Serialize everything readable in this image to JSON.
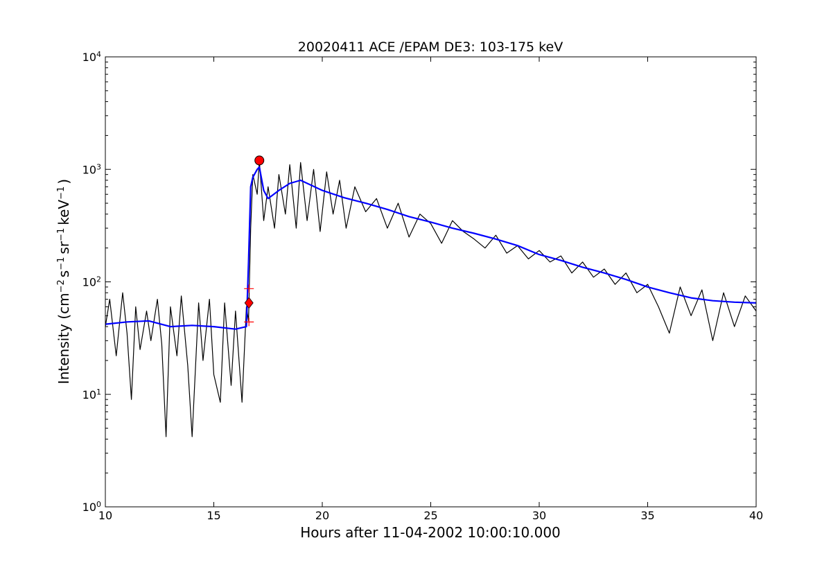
{
  "chart_data": {
    "type": "line",
    "title": "20020411 ACE /EPAM DE3: 103-175 keV",
    "xlabel": "Hours after 11-04-2002 10:00:10.000",
    "ylabel": {
      "base": "Intensity (cm",
      "exp1": "−2",
      "s": "s",
      "exp2": "−1",
      "sr": "sr",
      "exp3": "−1",
      "kev": "keV",
      "exp4": "−1",
      "close": ")"
    },
    "xlim": [
      10,
      40
    ],
    "ylim": [
      1,
      10000
    ],
    "yscale": "log",
    "grid": false,
    "x_ticks": [
      "10",
      "15",
      "20",
      "25",
      "30",
      "35",
      "40"
    ],
    "y_ticks": [
      {
        "base": "10",
        "exp": "0"
      },
      {
        "base": "10",
        "exp": "1"
      },
      {
        "base": "10",
        "exp": "2"
      },
      {
        "base": "10",
        "exp": "3"
      },
      {
        "base": "10",
        "exp": "4"
      }
    ],
    "colors": {
      "raw": "#000000",
      "smoothed": "#0000ff",
      "markers": "#ff0000"
    },
    "series": [
      {
        "style": "raw",
        "x": [
          10.0,
          10.2,
          10.5,
          10.8,
          11.0,
          11.2,
          11.4,
          11.6,
          11.9,
          12.1,
          12.4,
          12.6,
          12.8,
          13.0,
          13.3,
          13.5,
          13.8,
          14.0,
          14.3,
          14.5,
          14.8,
          15.0,
          15.3,
          15.5,
          15.8,
          16.0,
          16.3,
          16.5,
          16.6,
          16.7,
          16.8,
          17.0,
          17.1,
          17.3,
          17.5,
          17.8,
          18.0,
          18.3,
          18.5,
          18.8,
          19.0,
          19.3,
          19.6,
          19.9,
          20.2,
          20.5,
          20.8,
          21.1,
          21.5,
          22.0,
          22.5,
          23.0,
          23.5,
          24.0,
          24.5,
          25.0,
          25.5,
          26.0,
          26.5,
          27.0,
          27.5,
          28.0,
          28.5,
          29.0,
          29.5,
          30.0,
          30.5,
          31.0,
          31.5,
          32.0,
          32.5,
          33.0,
          33.5,
          34.0,
          34.5,
          35.0,
          35.5,
          36.0,
          36.5,
          37.0,
          37.5,
          38.0,
          38.5,
          39.0,
          39.5,
          40.0
        ],
        "y": [
          40,
          70,
          22,
          80,
          35,
          9,
          60,
          25,
          55,
          30,
          70,
          28,
          4.2,
          60,
          22,
          75,
          18,
          4.2,
          65,
          20,
          70,
          15,
          8.5,
          65,
          12,
          55,
          8.5,
          60,
          45,
          300,
          900,
          600,
          1200,
          350,
          700,
          300,
          900,
          400,
          1100,
          300,
          1150,
          350,
          1000,
          280,
          950,
          400,
          800,
          300,
          700,
          420,
          550,
          300,
          500,
          250,
          400,
          330,
          220,
          350,
          280,
          240,
          200,
          260,
          180,
          210,
          160,
          190,
          150,
          170,
          120,
          150,
          110,
          130,
          95,
          120,
          80,
          95,
          60,
          35,
          90,
          50,
          85,
          30,
          80,
          40,
          75,
          55
        ]
      },
      {
        "style": "smoothed",
        "x": [
          10.0,
          11.0,
          12.0,
          13.0,
          14.0,
          15.0,
          16.0,
          16.5,
          16.6,
          16.7,
          16.8,
          17.0,
          17.1,
          17.3,
          17.5,
          18.0,
          18.5,
          19.0,
          20.0,
          21.0,
          22.0,
          23.0,
          24.0,
          25.0,
          26.0,
          27.0,
          28.0,
          29.0,
          30.0,
          31.0,
          32.0,
          33.0,
          34.0,
          35.0,
          36.0,
          37.0,
          38.0,
          39.0,
          40.0
        ],
        "y": [
          42,
          44,
          45,
          40,
          41,
          40,
          38,
          40,
          150,
          700,
          850,
          1000,
          1050,
          650,
          550,
          650,
          750,
          800,
          650,
          560,
          500,
          440,
          380,
          340,
          300,
          270,
          240,
          210,
          175,
          155,
          135,
          120,
          105,
          90,
          80,
          72,
          68,
          66,
          65
        ]
      }
    ],
    "markers": [
      {
        "x": 17.1,
        "y": 1200,
        "shape": "circle"
      },
      {
        "x": 16.62,
        "y": 65,
        "shape": "diamond"
      },
      {
        "x": 16.62,
        "y": 87,
        "shape": "plus"
      },
      {
        "x": 16.62,
        "y": 44,
        "shape": "plus"
      }
    ]
  }
}
